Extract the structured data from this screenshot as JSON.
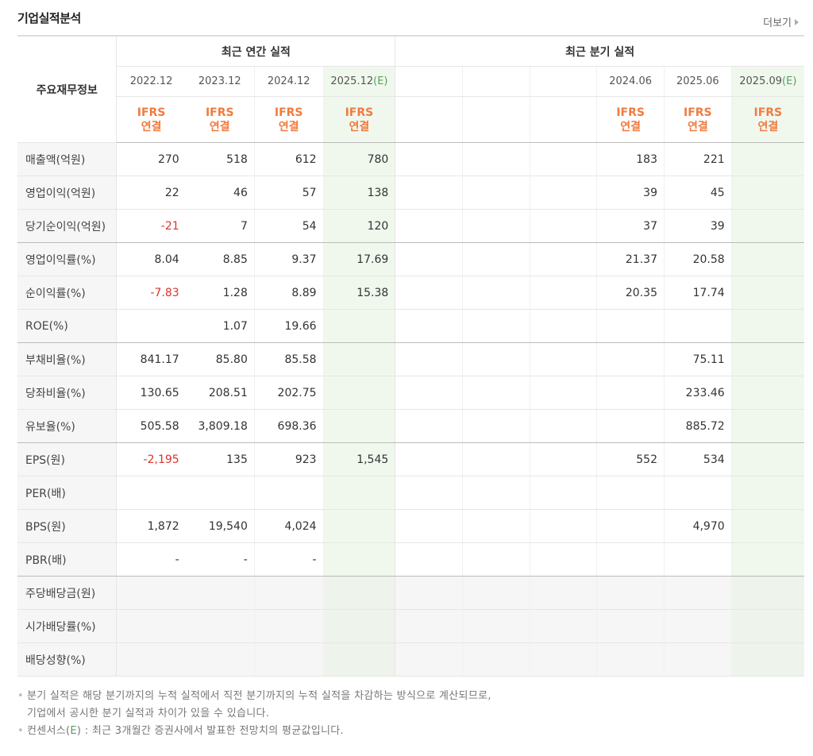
{
  "title": "기업실적분석",
  "more_label": "더보기",
  "header": {
    "corner": "주요재무정보",
    "annual_label": "최근 연간 실적",
    "quarter_label": "최근 분기 실적",
    "annual_periods": [
      "2022.12",
      "2023.12",
      "2024.12"
    ],
    "annual_est": {
      "period": "2025.12",
      "est": "(E)"
    },
    "quarter_periods": [
      "",
      "",
      "",
      "2024.06",
      "2025.06"
    ],
    "quarter_est": {
      "period": "2025.09",
      "est": "(E)"
    },
    "ifrs_line1": "IFRS",
    "ifrs_line2": "연결"
  },
  "rows": [
    {
      "label": "매출액(억원)",
      "annual": [
        "270",
        "518",
        "612",
        "780"
      ],
      "quarter": [
        "",
        "",
        "",
        "183",
        "221",
        ""
      ]
    },
    {
      "label": "영업이익(억원)",
      "annual": [
        "22",
        "46",
        "57",
        "138"
      ],
      "quarter": [
        "",
        "",
        "",
        "39",
        "45",
        ""
      ]
    },
    {
      "label": "당기순이익(억원)",
      "annual": [
        "-21",
        "7",
        "54",
        "120"
      ],
      "quarter": [
        "",
        "",
        "",
        "37",
        "39",
        ""
      ]
    },
    {
      "label": "영업이익률(%)",
      "annual": [
        "8.04",
        "8.85",
        "9.37",
        "17.69"
      ],
      "quarter": [
        "",
        "",
        "",
        "21.37",
        "20.58",
        ""
      ]
    },
    {
      "label": "순이익률(%)",
      "annual": [
        "-7.83",
        "1.28",
        "8.89",
        "15.38"
      ],
      "quarter": [
        "",
        "",
        "",
        "20.35",
        "17.74",
        ""
      ]
    },
    {
      "label": "ROE(%)",
      "annual": [
        "",
        "1.07",
        "19.66",
        ""
      ],
      "quarter": [
        "",
        "",
        "",
        "",
        "",
        ""
      ]
    },
    {
      "label": "부채비율(%)",
      "annual": [
        "841.17",
        "85.80",
        "85.58",
        ""
      ],
      "quarter": [
        "",
        "",
        "",
        "",
        "75.11",
        ""
      ]
    },
    {
      "label": "당좌비율(%)",
      "annual": [
        "130.65",
        "208.51",
        "202.75",
        ""
      ],
      "quarter": [
        "",
        "",
        "",
        "",
        "233.46",
        ""
      ]
    },
    {
      "label": "유보율(%)",
      "annual": [
        "505.58",
        "3,809.18",
        "698.36",
        ""
      ],
      "quarter": [
        "",
        "",
        "",
        "",
        "885.72",
        ""
      ]
    },
    {
      "label": "EPS(원)",
      "annual": [
        "-2,195",
        "135",
        "923",
        "1,545"
      ],
      "quarter": [
        "",
        "",
        "",
        "552",
        "534",
        ""
      ]
    },
    {
      "label": "PER(배)",
      "annual": [
        "",
        "",
        "",
        ""
      ],
      "quarter": [
        "",
        "",
        "",
        "",
        "",
        ""
      ]
    },
    {
      "label": "BPS(원)",
      "annual": [
        "1,872",
        "19,540",
        "4,024",
        ""
      ],
      "quarter": [
        "",
        "",
        "",
        "",
        "4,970",
        ""
      ]
    },
    {
      "label": "PBR(배)",
      "annual": [
        "-",
        "-",
        "-",
        ""
      ],
      "quarter": [
        "",
        "",
        "",
        "",
        "",
        ""
      ]
    },
    {
      "label": "주당배당금(원)",
      "annual": [
        "",
        "",
        "",
        ""
      ],
      "quarter": [
        "",
        "",
        "",
        "",
        "",
        ""
      ]
    },
    {
      "label": "시가배당률(%)",
      "annual": [
        "",
        "",
        "",
        ""
      ],
      "quarter": [
        "",
        "",
        "",
        "",
        "",
        ""
      ]
    },
    {
      "label": "배당성향(%)",
      "annual": [
        "",
        "",
        "",
        ""
      ],
      "quarter": [
        "",
        "",
        "",
        "",
        "",
        ""
      ]
    }
  ],
  "notes": {
    "line1": "분기 실적은 해당 분기까지의 누적 실적에서 직전 분기까지의 누적 실적을 차감하는 방식으로 계산되므로,",
    "line2": "기업에서 공시한 분기 실적과 차이가 있을 수 있습니다.",
    "line3_pre": "컨센서스(",
    "line3_mark": "E",
    "line3_post": ") : 최근 3개월간 증권사에서 발표한 전망치의 평균값입니다."
  },
  "colors": {
    "ifrs": "#f07b3f",
    "negative": "#d9352a",
    "estimate": "#55a05a",
    "est_bg": "#f0f8ee"
  }
}
